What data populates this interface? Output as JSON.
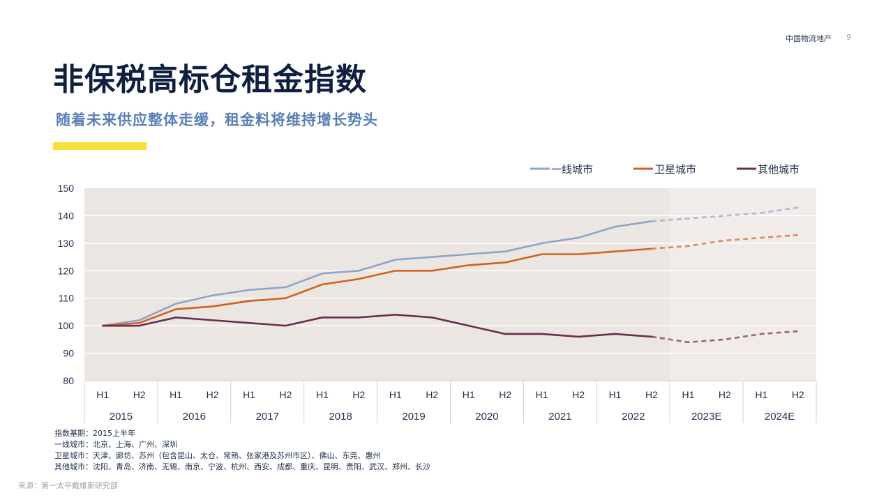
{
  "header": {
    "brand": "中国物流地产",
    "page_number": "9"
  },
  "title": "非保税高标仓租金指数",
  "subtitle": "随着未来供应整体走缓，租金料将维持增长势头",
  "notes": [
    "指数基期：2015上半年",
    "一线城市：北京、上海、广州、深圳",
    "卫星城市：天津、廊坊、苏州（包含昆山、太仓、常熟、张家港及苏州市区）、佛山、东莞、惠州",
    "其他城市：沈阳、青岛、济南、无锡、南京、宁波、杭州、西安、成都、重庆、昆明、贵阳、武汉、郑州、长沙"
  ],
  "source": "来源：第一太平戴维斯研究部",
  "colors": {
    "tier1": "#8fa3c9",
    "satellite": "#d4601f",
    "other": "#6b2d4f",
    "plot_bg": "#ebe6e1",
    "forecast_bg": "#f1ecea",
    "accent": "#f7e03c"
  },
  "chart_data": {
    "type": "line",
    "title": "",
    "xlabel": "",
    "ylabel": "",
    "ylim": [
      80,
      150
    ],
    "yticks": [
      80,
      90,
      100,
      110,
      120,
      130,
      140,
      150
    ],
    "grid": true,
    "legend_position": "top-right",
    "x": [
      "H1",
      "H2",
      "H1",
      "H2",
      "H1",
      "H2",
      "H1",
      "H2",
      "H1",
      "H2",
      "H1",
      "H2",
      "H1",
      "H2",
      "H1",
      "H2",
      "H1",
      "H2",
      "H1",
      "H2"
    ],
    "years": [
      "2015",
      "2016",
      "2017",
      "2018",
      "2019",
      "2020",
      "2021",
      "2022",
      "2023E",
      "2024E"
    ],
    "forecast_start_index": 16,
    "series": [
      {
        "name": "一线城市",
        "color": "#8fa3c9",
        "values": [
          100,
          102,
          108,
          111,
          113,
          114,
          119,
          120,
          124,
          125,
          126,
          127,
          130,
          132,
          136,
          138,
          139,
          140,
          141,
          143
        ]
      },
      {
        "name": "卫星城市",
        "color": "#d4601f",
        "values": [
          100,
          101,
          106,
          107,
          109,
          110,
          115,
          117,
          120,
          120,
          122,
          123,
          126,
          126,
          127,
          128,
          129,
          131,
          132,
          133
        ]
      },
      {
        "name": "其他城市",
        "color": "#6b2d4f",
        "values": [
          100,
          100,
          103,
          102,
          101,
          100,
          103,
          103,
          104,
          103,
          100,
          97,
          97,
          96,
          97,
          96,
          94,
          95,
          97,
          98
        ]
      }
    ]
  }
}
